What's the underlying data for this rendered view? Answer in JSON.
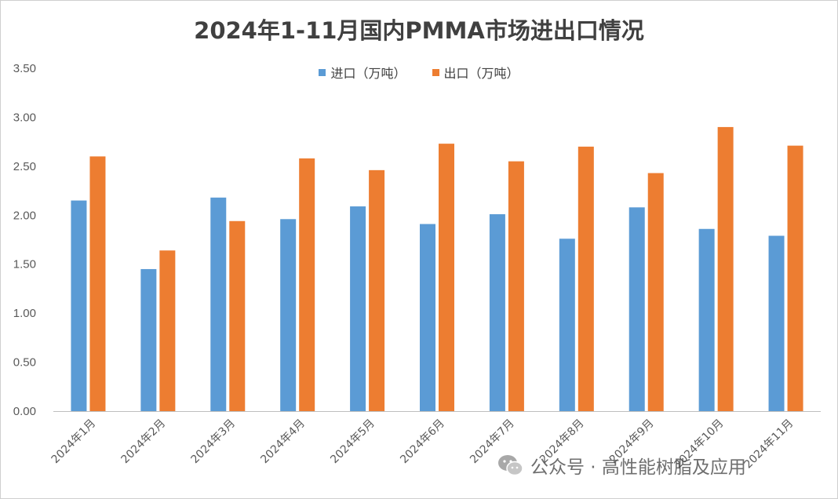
{
  "chart_data": {
    "type": "bar",
    "title": "2024年1-11月国内PMMA市场进出口情况",
    "categories": [
      "2024年1月",
      "2024年2月",
      "2024年3月",
      "2024年4月",
      "2024年5月",
      "2024年6月",
      "2024年7月",
      "2024年8月",
      "2024年9月",
      "2024年10月",
      "2024年11月"
    ],
    "series": [
      {
        "name": "进口（万吨）",
        "color": "#5b9bd5",
        "values": [
          2.15,
          1.45,
          2.18,
          1.96,
          2.09,
          1.91,
          2.01,
          1.76,
          2.08,
          1.86,
          1.79
        ]
      },
      {
        "name": "出口（万吨）",
        "color": "#ed7d31",
        "values": [
          2.6,
          1.64,
          1.94,
          2.58,
          2.46,
          2.73,
          2.55,
          2.7,
          2.43,
          2.9,
          2.71
        ]
      }
    ],
    "ylim": [
      0,
      3.5
    ],
    "yticks": [
      "0.00",
      "0.50",
      "1.00",
      "1.50",
      "2.00",
      "2.50",
      "3.00",
      "3.50"
    ],
    "xlabel": "",
    "ylabel": "",
    "grid": false,
    "legend": "top"
  },
  "watermark": {
    "text": "公众号 · 高性能树脂及应用",
    "icon": "wechat-icon"
  }
}
